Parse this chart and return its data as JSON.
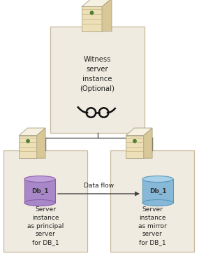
{
  "bg_color": "#ffffff",
  "box_fill": "#f0ebe0",
  "box_edge": "#c8b89a",
  "server_body_light": "#ede0b8",
  "server_body_dark": "#c8b87a",
  "server_top_light": "#f5f0e0",
  "server_right_dark": "#d8c898",
  "db_purple_top": "#c0a0d8",
  "db_purple_body": "#a888c8",
  "db_purple_dark": "#8860a8",
  "db_blue_top": "#a8d0e8",
  "db_blue_body": "#88b8d8",
  "db_blue_dark": "#5898b8",
  "arrow_color": "#444444",
  "text_color": "#222222",
  "witness_text": "Witness\nserver\ninstance\n(Optional)",
  "principal_text": "Server\ninstance\nas principal\nserver\nfor DB_1",
  "mirror_text": "Server\ninstance\nas mirror\nserver\nfor DB_1",
  "db_label": "Db_1",
  "flow_label": "Data flow",
  "line_color": "#555555",
  "glasses_color": "#111111",
  "green_dot": "#4a8030"
}
